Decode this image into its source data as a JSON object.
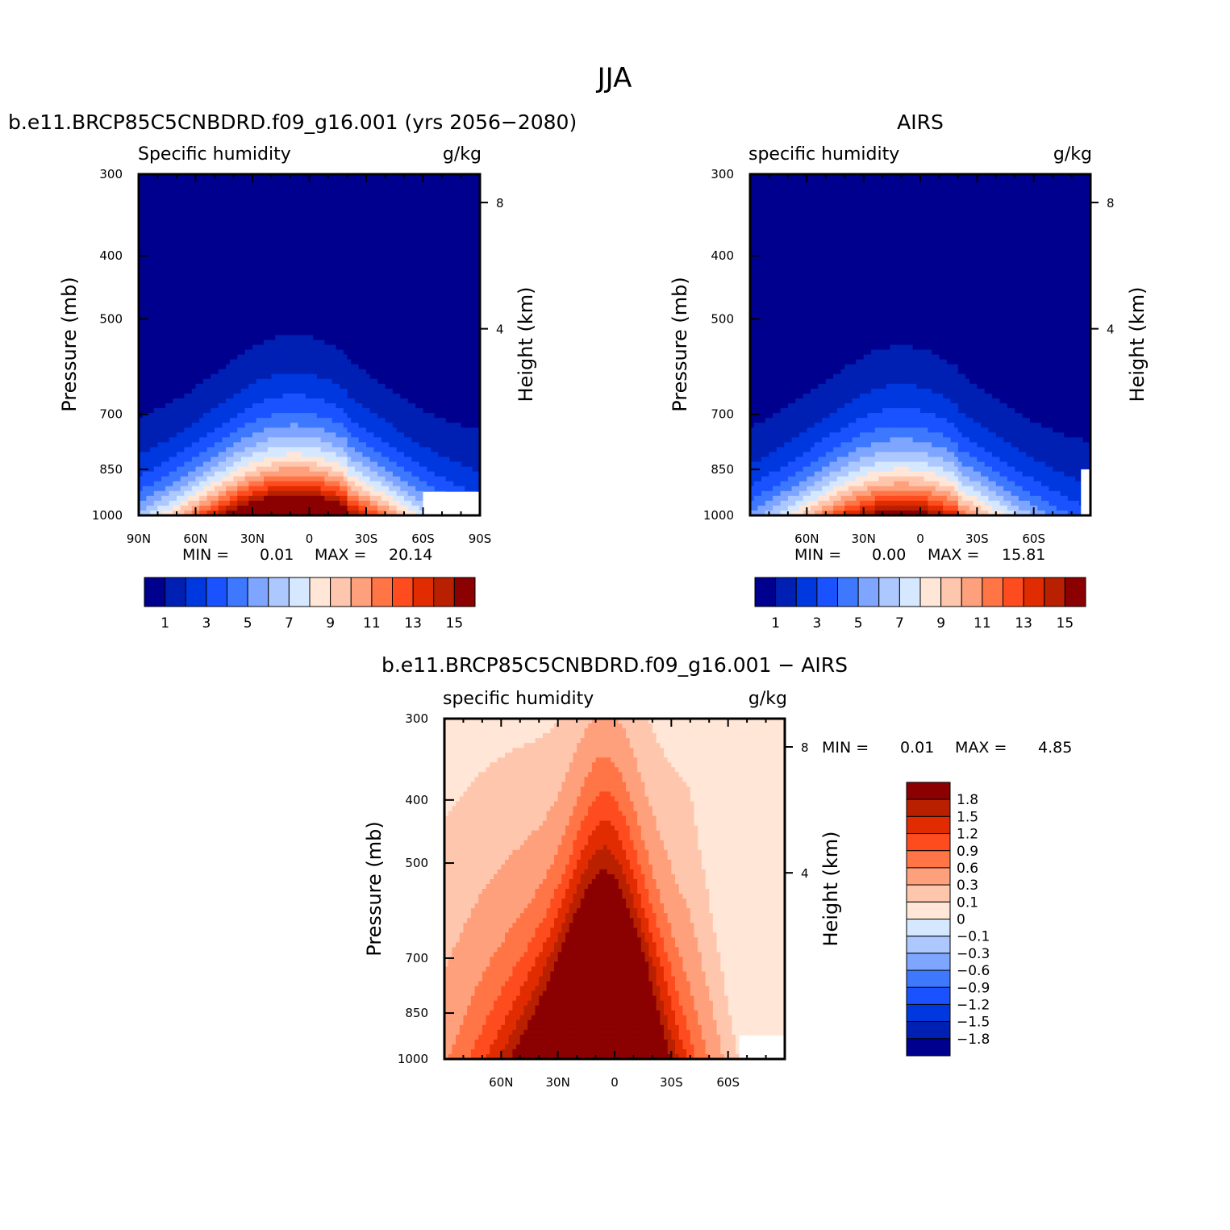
{
  "figure": {
    "title": "JJA"
  },
  "chart_data": [
    {
      "type": "contour",
      "title": "b.e11.BRCP85C5CNBDRD.f09_g16.001 (yrs 2056−2080)",
      "left_string": "Specific humidity",
      "right_string": "g/kg",
      "xticks": [
        "90N",
        "60N",
        "30N",
        "0",
        "30S",
        "60S",
        "90S"
      ],
      "xtick_lat": [
        90,
        60,
        30,
        0,
        -30,
        -60,
        -90
      ],
      "xlim": [
        90,
        -90
      ],
      "yticks": [
        "300",
        "400",
        "500",
        "700",
        "850",
        "1000"
      ],
      "ytick_p": [
        300,
        400,
        500,
        700,
        850,
        1000
      ],
      "ylim": [
        1000,
        300
      ],
      "ylabel": "Pressure (mb)",
      "y2label": "Height (km)",
      "y2ticks": [
        "8",
        "4"
      ],
      "stats": {
        "min_label": "MIN =",
        "min_value": "0.01",
        "max_label": "MAX =",
        "max_value": "20.14"
      },
      "max_value": 20.14,
      "peak_lat": 8,
      "colorbar": {
        "orientation": "horizontal",
        "labels": [
          "1",
          "3",
          "5",
          "7",
          "9",
          "11",
          "13",
          "15"
        ]
      }
    },
    {
      "type": "contour",
      "title": "AIRS",
      "left_string": "specific humidity",
      "right_string": "g/kg",
      "xticks": [
        "60N",
        "30N",
        "0",
        "30S",
        "60S"
      ],
      "xtick_lat": [
        60,
        30,
        0,
        -30,
        -60
      ],
      "xlim": [
        90,
        -90
      ],
      "yticks": [
        "300",
        "400",
        "500",
        "700",
        "850",
        "1000"
      ],
      "ytick_p": [
        300,
        400,
        500,
        700,
        850,
        1000
      ],
      "ylim": [
        1000,
        300
      ],
      "ylabel": "Pressure (mb)",
      "y2label": "Height (km)",
      "y2ticks": [
        "8",
        "4"
      ],
      "stats": {
        "min_label": "MIN =",
        "min_value": "0.00",
        "max_label": "MAX =",
        "max_value": "15.81"
      },
      "max_value": 15.81,
      "peak_lat": 10,
      "colorbar": {
        "orientation": "horizontal",
        "labels": [
          "1",
          "3",
          "5",
          "7",
          "9",
          "11",
          "13",
          "15"
        ]
      }
    },
    {
      "type": "contour",
      "title": "b.e11.BRCP85C5CNBDRD.f09_g16.001 − AIRS",
      "left_string": "specific humidity",
      "right_string": "g/kg",
      "xticks": [
        "60N",
        "30N",
        "0",
        "30S",
        "60S"
      ],
      "xtick_lat": [
        60,
        30,
        0,
        -30,
        -60
      ],
      "xlim": [
        90,
        -90
      ],
      "yticks": [
        "300",
        "400",
        "500",
        "700",
        "850",
        "1000"
      ],
      "ytick_p": [
        300,
        400,
        500,
        700,
        850,
        1000
      ],
      "ylim": [
        1000,
        300
      ],
      "ylabel": "Pressure (mb)",
      "y2label": "Height (km)",
      "y2ticks": [
        "8",
        "4"
      ],
      "stats": {
        "min_label": "MIN =",
        "min_value": "0.01",
        "max_label": "MAX =",
        "max_value": "4.85"
      },
      "max_value": 4.85,
      "colorbar": {
        "orientation": "vertical",
        "labels": [
          "1.8",
          "1.5",
          "1.2",
          "0.9",
          "0.6",
          "0.3",
          "0.1",
          "0",
          "−0.1",
          "−0.3",
          "−0.6",
          "−0.9",
          "−1.2",
          "−1.5",
          "−1.8"
        ]
      }
    }
  ],
  "colors": {
    "full_field": [
      "#00008e",
      "#0020b4",
      "#0038e0",
      "#1a52ff",
      "#3d78ff",
      "#7ea5ff",
      "#adc8ff",
      "#d6e8ff",
      "#ffe6d6",
      "#ffc6ae",
      "#ffa07c",
      "#ff7546",
      "#ff4c1e",
      "#e02c00",
      "#b82000",
      "#8b0000"
    ],
    "difference": [
      "#8b0000",
      "#b82000",
      "#e02c00",
      "#ff4c1e",
      "#ff7546",
      "#ffa07c",
      "#ffc6ae",
      "#ffe6d6",
      "#d6e8ff",
      "#adc8ff",
      "#7ea5ff",
      "#3d78ff",
      "#1a52ff",
      "#0038e0",
      "#0020b4",
      "#00008e"
    ]
  }
}
